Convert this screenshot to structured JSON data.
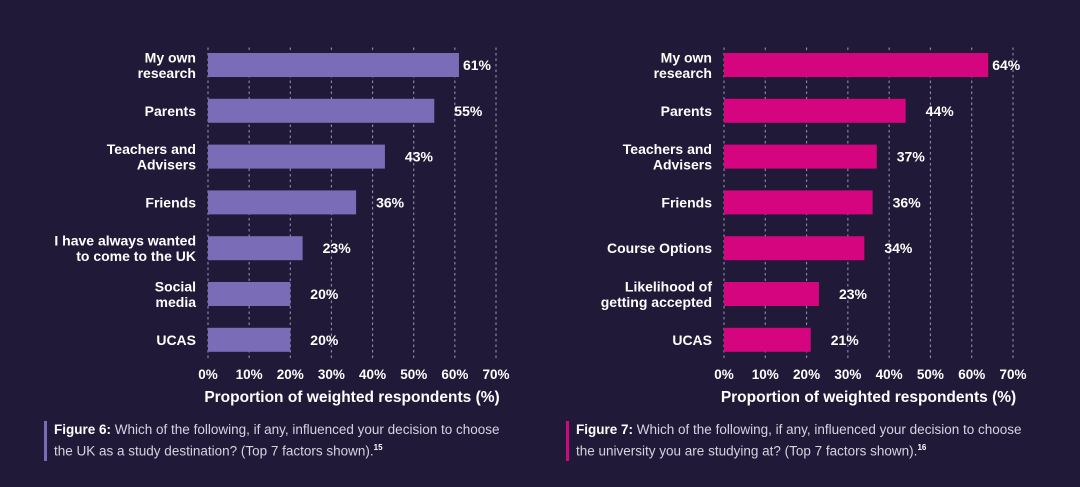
{
  "chart_data": [
    {
      "type": "bar",
      "orientation": "horizontal",
      "color": "#7b6cb8",
      "categories": [
        [
          "My own",
          "research"
        ],
        [
          "Parents"
        ],
        [
          "Teachers and",
          "Advisers"
        ],
        [
          "Friends"
        ],
        [
          "I have always wanted",
          "to come to the UK"
        ],
        [
          "Social",
          "media"
        ],
        [
          "UCAS"
        ]
      ],
      "values": [
        61,
        55,
        43,
        36,
        23,
        20,
        20
      ],
      "value_labels": [
        "61%",
        "55%",
        "43%",
        "36%",
        "23%",
        "20%",
        "20%"
      ],
      "xlim": [
        0,
        70
      ],
      "xticks": [
        "0%",
        "10%",
        "20%",
        "30%",
        "40%",
        "50%",
        "60%",
        "70%"
      ],
      "xlabel": "Proportion of weighted respondents (%)",
      "grid": "vertical dotted",
      "caption": {
        "figure_label": "Figure 6:",
        "text": "Which of the following, if any, influenced your decision to choose the UK as a study destination? (Top 7 factors shown).",
        "footnote": "15"
      }
    },
    {
      "type": "bar",
      "orientation": "horizontal",
      "color": "#d4057f",
      "categories": [
        [
          "My own",
          "research"
        ],
        [
          "Parents"
        ],
        [
          "Teachers and",
          "Advisers"
        ],
        [
          "Friends"
        ],
        [
          "Course Options"
        ],
        [
          "Likelihood of",
          "getting accepted"
        ],
        [
          "UCAS"
        ]
      ],
      "values": [
        64,
        44,
        37,
        36,
        34,
        23,
        21
      ],
      "value_labels": [
        "64%",
        "44%",
        "37%",
        "36%",
        "34%",
        "23%",
        "21%"
      ],
      "xlim": [
        0,
        70
      ],
      "xticks": [
        "0%",
        "10%",
        "20%",
        "30%",
        "40%",
        "50%",
        "60%",
        "70%"
      ],
      "xlabel": "Proportion of weighted respondents (%)",
      "grid": "vertical dotted",
      "caption": {
        "figure_label": "Figure 7:",
        "text": "Which of the following, if any, influenced your decision to choose the university you are studying at? (Top 7 factors shown).",
        "footnote": "16"
      }
    }
  ]
}
